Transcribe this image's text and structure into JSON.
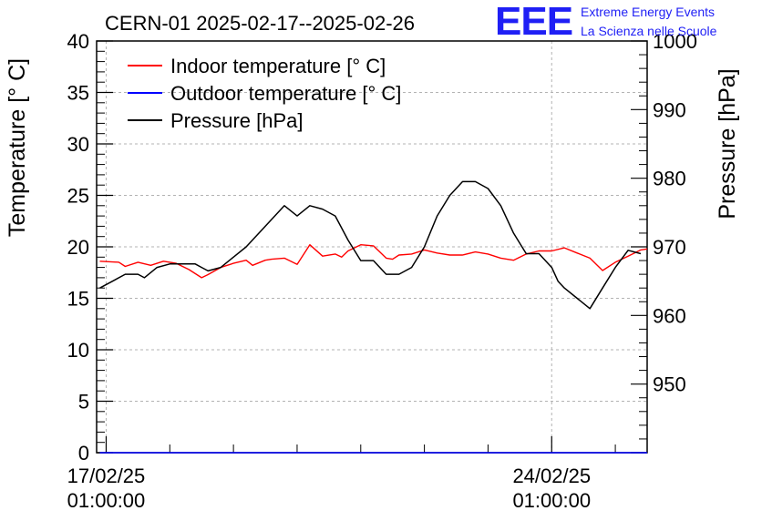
{
  "chart_data": {
    "type": "line",
    "title": "CERN-01 2025-02-17--2025-02-26",
    "ylabel": "Temperature [° C]",
    "y2label": "Pressure [hPa]",
    "ylim": [
      0,
      40
    ],
    "y2lim": [
      940,
      1000
    ],
    "xlim_days": [
      -0.15,
      8.5
    ],
    "yticks": [
      "0",
      "5",
      "10",
      "15",
      "20",
      "25",
      "30",
      "35",
      "40"
    ],
    "y2ticks": [
      "950",
      "960",
      "970",
      "980",
      "990",
      "1000"
    ],
    "xticks": [
      {
        "day": 0,
        "date": "17/02/25",
        "time": "01:00:00"
      },
      {
        "day": 7,
        "date": "24/02/25",
        "time": "01:00:00"
      }
    ],
    "legend": {
      "position": "top-left",
      "entries": [
        {
          "label": "Indoor temperature [° C]",
          "color": "#ff0000"
        },
        {
          "label": "Outdoor temperature [° C]",
          "color": "#0000ff"
        },
        {
          "label": "Pressure [hPa]",
          "color": "#000000"
        }
      ]
    },
    "series": [
      {
        "name": "Indoor temperature [° C]",
        "axis": "left",
        "color": "#ff0000",
        "x": [
          -0.1,
          0.2,
          0.3,
          0.5,
          0.7,
          0.9,
          1.1,
          1.3,
          1.5,
          1.6,
          1.8,
          2.0,
          2.2,
          2.3,
          2.5,
          2.6,
          2.8,
          3.0,
          3.2,
          3.4,
          3.6,
          3.7,
          3.8,
          4.0,
          4.2,
          4.4,
          4.5,
          4.6,
          4.8,
          5.0,
          5.2,
          5.4,
          5.6,
          5.8,
          6.0,
          6.2,
          6.4,
          6.6,
          6.8,
          7.0,
          7.2,
          7.4,
          7.6,
          7.8,
          8.0,
          8.2,
          8.4,
          8.5
        ],
        "values": [
          18.6,
          18.5,
          18.1,
          18.5,
          18.2,
          18.6,
          18.4,
          17.8,
          17.0,
          17.3,
          18.0,
          18.4,
          18.7,
          18.2,
          18.7,
          18.8,
          18.9,
          18.3,
          20.2,
          19.1,
          19.3,
          19.0,
          19.6,
          20.2,
          20.1,
          18.9,
          18.8,
          19.2,
          19.3,
          19.7,
          19.4,
          19.2,
          19.2,
          19.5,
          19.3,
          18.9,
          18.7,
          19.3,
          19.6,
          19.6,
          19.9,
          19.4,
          18.9,
          17.7,
          18.5,
          19.1,
          19.7,
          19.8
        ]
      },
      {
        "name": "Outdoor temperature [° C]",
        "axis": "left",
        "color": "#0000ff",
        "x": [
          -0.1,
          8.5
        ],
        "values": [
          0,
          0
        ]
      },
      {
        "name": "Pressure [hPa]",
        "axis": "right",
        "color": "#000000",
        "x": [
          -0.1,
          0.1,
          0.3,
          0.5,
          0.6,
          0.8,
          1.0,
          1.2,
          1.4,
          1.5,
          1.6,
          1.8,
          2.0,
          2.2,
          2.4,
          2.6,
          2.8,
          3.0,
          3.2,
          3.4,
          3.6,
          3.8,
          4.0,
          4.2,
          4.4,
          4.6,
          4.8,
          5.0,
          5.2,
          5.4,
          5.6,
          5.8,
          6.0,
          6.2,
          6.4,
          6.6,
          6.8,
          7.0,
          7.1,
          7.2,
          7.4,
          7.6,
          7.8,
          8.0,
          8.2,
          8.4
        ],
        "values": [
          964,
          965,
          966,
          966,
          965.5,
          967,
          967.5,
          967.5,
          967.5,
          967,
          966.5,
          967,
          968.5,
          970,
          972,
          974,
          976,
          974.5,
          976,
          975.5,
          974.5,
          971,
          968,
          968,
          966,
          966,
          967,
          970,
          974.5,
          977.5,
          979.5,
          979.5,
          978.5,
          976,
          972,
          969,
          969,
          967,
          965,
          964,
          962.5,
          961,
          964,
          967,
          969.5,
          969
        ]
      }
    ]
  },
  "logo": {
    "text": "EEE",
    "line1": "Extreme Energy Events",
    "line2": "La Scienza nelle Scuole"
  }
}
